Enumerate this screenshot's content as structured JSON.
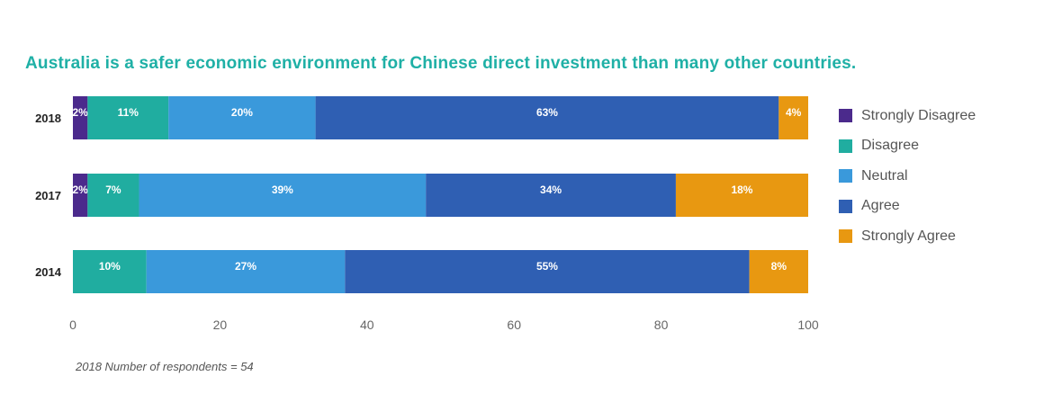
{
  "title": "Australia is a safer economic environment for Chinese direct investment than many other countries.",
  "footnote": "2018 Number of respondents = 54",
  "chart_data": {
    "type": "bar",
    "orientation": "horizontal",
    "stacked": true,
    "categories": [
      "2018",
      "2017",
      "2014"
    ],
    "series": [
      {
        "name": "Strongly Disagree",
        "color": "#4b2a8c",
        "values": [
          2,
          2,
          0
        ]
      },
      {
        "name": "Disagree",
        "color": "#20ada0",
        "values": [
          11,
          7,
          10
        ]
      },
      {
        "name": "Neutral",
        "color": "#3a99db",
        "values": [
          20,
          39,
          27
        ]
      },
      {
        "name": "Agree",
        "color": "#2f5fb3",
        "values": [
          63,
          34,
          55
        ]
      },
      {
        "name": "Strongly Agree",
        "color": "#e89811",
        "values": [
          4,
          18,
          8
        ]
      }
    ],
    "xlim": [
      0,
      100
    ],
    "xticks": [
      0,
      20,
      40,
      60,
      80,
      100
    ],
    "grid": false,
    "legend_position": "right"
  }
}
